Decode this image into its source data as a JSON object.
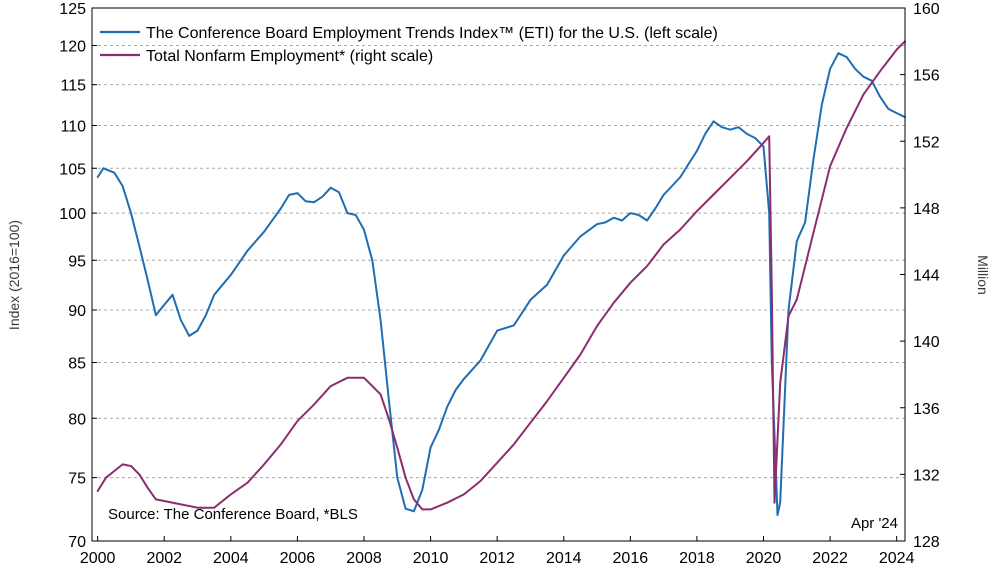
{
  "chart_data": {
    "type": "line",
    "x_range": [
      1999.83,
      2024.25
    ],
    "x_ticks": [
      2000,
      2002,
      2004,
      2006,
      2008,
      2010,
      2012,
      2014,
      2016,
      2018,
      2020,
      2022,
      2024
    ],
    "x_tick_labels": [
      "2000",
      "2002",
      "2004",
      "2006",
      "2008",
      "2010",
      "2012",
      "2014",
      "2016",
      "2018",
      "2020",
      "2022",
      "2024"
    ],
    "y_left": {
      "label": "Index (2016=100)",
      "scale": "log",
      "range": [
        70,
        125
      ],
      "ticks": [
        70,
        75,
        80,
        85,
        90,
        95,
        100,
        105,
        110,
        115,
        120,
        125
      ]
    },
    "y_right": {
      "label": "Million",
      "range": [
        128,
        160
      ],
      "ticks": [
        128,
        132,
        136,
        140,
        144,
        148,
        152,
        156,
        160
      ]
    },
    "grid": true,
    "legend_position": "top-left",
    "series": [
      {
        "name": "The Conference Board Employment Trends Index™ (ETI) for the U.S. (left scale)",
        "axis": "left",
        "color": "#1f6db3",
        "x": [
          2000.0,
          2000.17,
          2000.5,
          2000.75,
          2001.0,
          2001.25,
          2001.5,
          2001.75,
          2002.0,
          2002.25,
          2002.5,
          2002.75,
          2003.0,
          2003.25,
          2003.5,
          2003.75,
          2004.0,
          2004.5,
          2005.0,
          2005.5,
          2005.75,
          2006.0,
          2006.25,
          2006.5,
          2006.75,
          2007.0,
          2007.25,
          2007.5,
          2007.75,
          2008.0,
          2008.25,
          2008.5,
          2008.75,
          2009.0,
          2009.25,
          2009.5,
          2009.75,
          2010.0,
          2010.25,
          2010.5,
          2010.75,
          2011.0,
          2011.5,
          2012.0,
          2012.5,
          2013.0,
          2013.5,
          2014.0,
          2014.5,
          2015.0,
          2015.25,
          2015.5,
          2015.75,
          2016.0,
          2016.25,
          2016.5,
          2016.75,
          2017.0,
          2017.25,
          2017.5,
          2017.75,
          2018.0,
          2018.25,
          2018.5,
          2018.75,
          2019.0,
          2019.25,
          2019.5,
          2019.75,
          2020.0,
          2020.17,
          2020.25,
          2020.42,
          2020.5,
          2020.75,
          2021.0,
          2021.25,
          2021.5,
          2021.75,
          2022.0,
          2022.25,
          2022.5,
          2022.75,
          2023.0,
          2023.25,
          2023.5,
          2023.75,
          2024.0,
          2024.25
        ],
        "y": [
          104.0,
          105.0,
          104.5,
          103.0,
          100.0,
          96.5,
          93.0,
          89.5,
          90.5,
          91.5,
          89.0,
          87.5,
          88.0,
          89.5,
          91.5,
          92.5,
          93.5,
          96.0,
          98.0,
          100.5,
          102.0,
          102.2,
          101.3,
          101.2,
          101.8,
          102.8,
          102.3,
          100.0,
          99.8,
          98.2,
          95.0,
          89.0,
          81.5,
          75.0,
          72.5,
          72.3,
          74.0,
          77.5,
          79.0,
          81.0,
          82.5,
          83.5,
          85.2,
          88.0,
          88.5,
          91.0,
          92.5,
          95.5,
          97.5,
          98.8,
          99.0,
          99.5,
          99.2,
          100.0,
          99.8,
          99.2,
          100.5,
          102.0,
          103.0,
          104.0,
          105.5,
          107.0,
          109.0,
          110.5,
          109.8,
          109.5,
          109.8,
          109.0,
          108.5,
          107.5,
          100.0,
          85.0,
          72.0,
          73.0,
          90.0,
          97.0,
          99.0,
          106.0,
          112.5,
          117.0,
          119.0,
          118.5,
          117.0,
          116.0,
          115.5,
          113.5,
          112.0,
          111.5,
          111.0
        ]
      },
      {
        "name": "Total Nonfarm Employment* (right scale)",
        "axis": "right",
        "color": "#8c2d6e",
        "x": [
          2000.0,
          2000.25,
          2000.5,
          2000.75,
          2001.0,
          2001.25,
          2001.5,
          2001.75,
          2002.0,
          2002.5,
          2003.0,
          2003.5,
          2004.0,
          2004.5,
          2005.0,
          2005.5,
          2006.0,
          2006.5,
          2007.0,
          2007.5,
          2008.0,
          2008.25,
          2008.5,
          2008.75,
          2009.0,
          2009.25,
          2009.5,
          2009.75,
          2010.0,
          2010.5,
          2011.0,
          2011.5,
          2012.0,
          2012.5,
          2013.0,
          2013.5,
          2014.0,
          2014.5,
          2015.0,
          2015.5,
          2016.0,
          2016.5,
          2017.0,
          2017.5,
          2018.0,
          2018.5,
          2019.0,
          2019.5,
          2020.0,
          2020.17,
          2020.25,
          2020.33,
          2020.5,
          2020.75,
          2021.0,
          2021.25,
          2021.5,
          2021.75,
          2022.0,
          2022.5,
          2023.0,
          2023.5,
          2024.0,
          2024.25
        ],
        "y": [
          131.0,
          131.8,
          132.2,
          132.6,
          132.5,
          132.0,
          131.2,
          130.5,
          130.4,
          130.2,
          130.0,
          130.0,
          130.8,
          131.5,
          132.6,
          133.8,
          135.2,
          136.2,
          137.3,
          137.8,
          137.8,
          137.3,
          136.8,
          135.3,
          133.6,
          131.8,
          130.5,
          129.9,
          129.9,
          130.3,
          130.8,
          131.6,
          132.7,
          133.8,
          135.1,
          136.4,
          137.8,
          139.2,
          140.9,
          142.3,
          143.5,
          144.5,
          145.8,
          146.7,
          147.8,
          148.8,
          149.8,
          150.8,
          151.9,
          152.3,
          143.0,
          130.3,
          137.5,
          141.5,
          142.5,
          144.5,
          146.5,
          148.5,
          150.5,
          152.8,
          154.8,
          156.2,
          157.5,
          158.0
        ]
      }
    ],
    "annotations": {
      "source": "Source: The Conference Board, *BLS",
      "date_stamp": "Apr '24"
    }
  }
}
